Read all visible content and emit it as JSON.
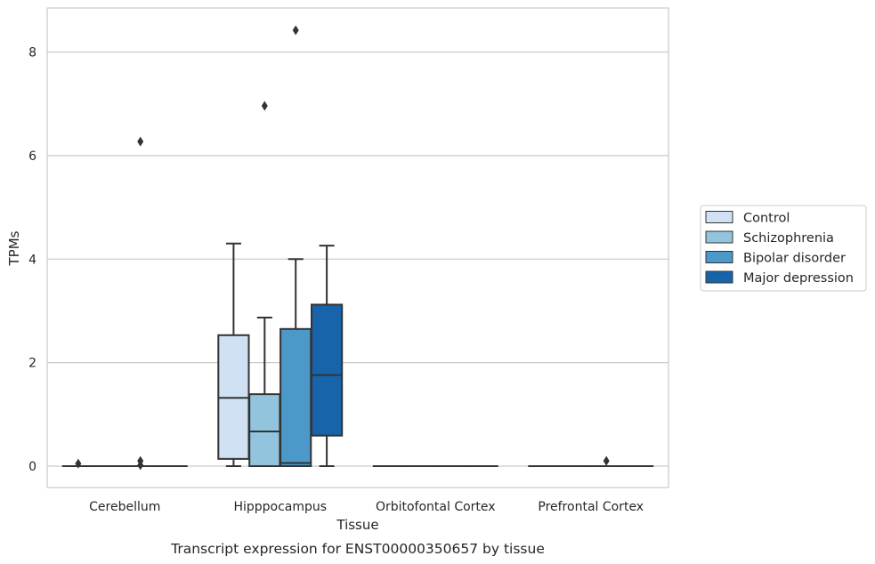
{
  "chart_data": {
    "type": "box",
    "title": "",
    "caption": "Transcript expression for ENST00000350657 by tissue",
    "xlabel": "Tissue",
    "ylabel": "TPMs",
    "ylim": [
      -0.4,
      8.85
    ],
    "yticks": [
      0,
      2,
      4,
      6,
      8
    ],
    "grid": "horizontal",
    "legend_position": "right",
    "categories": [
      "Cerebellum",
      "Hipppocampus",
      "Orbitofontal Cortex",
      "Prefrontal Cortex"
    ],
    "series": [
      {
        "name": "Control",
        "color": "#cfe1f2",
        "boxes": [
          {
            "whisker_low": 0,
            "q1": 0,
            "median": 0,
            "q3": 0,
            "whisker_high": 0,
            "outliers": [
              0.05
            ]
          },
          {
            "whisker_low": 0,
            "q1": 0.14,
            "median": 1.32,
            "q3": 2.53,
            "whisker_high": 4.3,
            "outliers": []
          },
          {
            "whisker_low": 0,
            "q1": 0,
            "median": 0,
            "q3": 0,
            "whisker_high": 0,
            "outliers": []
          },
          {
            "whisker_low": 0,
            "q1": 0,
            "median": 0,
            "q3": 0,
            "whisker_high": 0,
            "outliers": []
          }
        ]
      },
      {
        "name": "Schizophrenia",
        "color": "#93c4de",
        "boxes": [
          {
            "whisker_low": 0,
            "q1": 0,
            "median": 0,
            "q3": 0,
            "whisker_high": 0,
            "outliers": []
          },
          {
            "whisker_low": 0,
            "q1": 0,
            "median": 0.67,
            "q3": 1.39,
            "whisker_high": 2.87,
            "outliers": [
              6.96
            ]
          },
          {
            "whisker_low": 0,
            "q1": 0,
            "median": 0,
            "q3": 0,
            "whisker_high": 0,
            "outliers": []
          },
          {
            "whisker_low": 0,
            "q1": 0,
            "median": 0,
            "q3": 0,
            "whisker_high": 0,
            "outliers": []
          }
        ]
      },
      {
        "name": "Bipolar disorder",
        "color": "#4b98c9",
        "boxes": [
          {
            "whisker_low": 0,
            "q1": 0,
            "median": 0,
            "q3": 0,
            "whisker_high": 0,
            "outliers": [
              0.02,
              0.1,
              6.27
            ]
          },
          {
            "whisker_low": 0,
            "q1": 0,
            "median": 0.06,
            "q3": 2.65,
            "whisker_high": 4.0,
            "outliers": [
              8.42
            ]
          },
          {
            "whisker_low": 0,
            "q1": 0,
            "median": 0,
            "q3": 0,
            "whisker_high": 0,
            "outliers": []
          },
          {
            "whisker_low": 0,
            "q1": 0,
            "median": 0,
            "q3": 0,
            "whisker_high": 0,
            "outliers": [
              0.1
            ]
          }
        ]
      },
      {
        "name": "Major depression",
        "color": "#1764ab",
        "boxes": [
          {
            "whisker_low": 0,
            "q1": 0,
            "median": 0,
            "q3": 0,
            "whisker_high": 0,
            "outliers": []
          },
          {
            "whisker_low": 0,
            "q1": 0.59,
            "median": 1.76,
            "q3": 3.12,
            "whisker_high": 4.26,
            "outliers": []
          },
          {
            "whisker_low": 0,
            "q1": 0,
            "median": 0,
            "q3": 0,
            "whisker_high": 0,
            "outliers": []
          },
          {
            "whisker_low": 0,
            "q1": 0,
            "median": 0,
            "q3": 0,
            "whisker_high": 0,
            "outliers": []
          }
        ]
      }
    ]
  }
}
